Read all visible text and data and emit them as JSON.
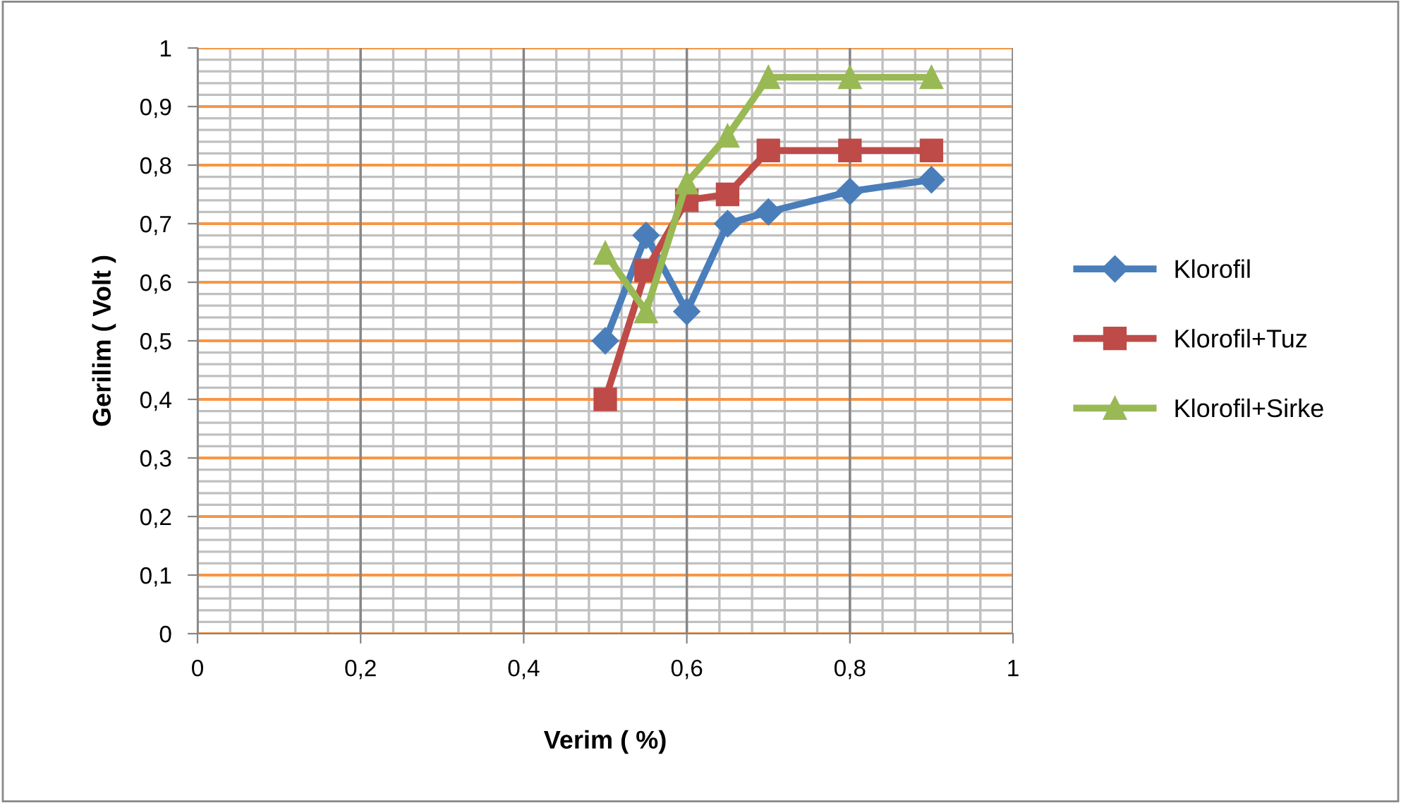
{
  "chart_data": {
    "type": "line",
    "xlabel": "Verim ( %)",
    "ylabel": "Gerilim ( Volt )",
    "x": [
      0.5,
      0.55,
      0.6,
      0.65,
      0.7,
      0.8,
      0.9
    ],
    "series": [
      {
        "name": "Klorofil",
        "color": "#4a7ebb",
        "marker": "diamond",
        "values": [
          0.5,
          0.68,
          0.55,
          0.7,
          0.72,
          0.755,
          0.775
        ]
      },
      {
        "name": "Klorofil+Tuz",
        "color": "#be4b48",
        "marker": "square",
        "values": [
          0.4,
          0.62,
          0.74,
          0.75,
          0.825,
          0.825,
          0.825
        ]
      },
      {
        "name": "Klorofil+Sirke",
        "color": "#98b954",
        "marker": "triangle",
        "values": [
          0.65,
          0.55,
          0.77,
          0.85,
          0.95,
          0.95,
          0.95
        ]
      }
    ],
    "xlim": [
      0,
      1
    ],
    "xticks": [
      {
        "value": 0,
        "label": "0"
      },
      {
        "value": 0.2,
        "label": "0,2"
      },
      {
        "value": 0.4,
        "label": "0,4"
      },
      {
        "value": 0.6,
        "label": "0,6"
      },
      {
        "value": 0.8,
        "label": "0,8"
      },
      {
        "value": 1,
        "label": "1"
      }
    ],
    "ylim": [
      0,
      1
    ],
    "yticks": [
      {
        "value": 0,
        "label": "0"
      },
      {
        "value": 0.1,
        "label": "0,1"
      },
      {
        "value": 0.2,
        "label": "0,2"
      },
      {
        "value": 0.3,
        "label": "0,3"
      },
      {
        "value": 0.4,
        "label": "0,4"
      },
      {
        "value": 0.5,
        "label": "0,5"
      },
      {
        "value": 0.6,
        "label": "0,6"
      },
      {
        "value": 0.7,
        "label": "0,7"
      },
      {
        "value": 0.8,
        "label": "0,8"
      },
      {
        "value": 0.9,
        "label": "0,9"
      },
      {
        "value": 1,
        "label": "1"
      }
    ],
    "grid": true,
    "legend": "right",
    "line_style": "solid"
  }
}
